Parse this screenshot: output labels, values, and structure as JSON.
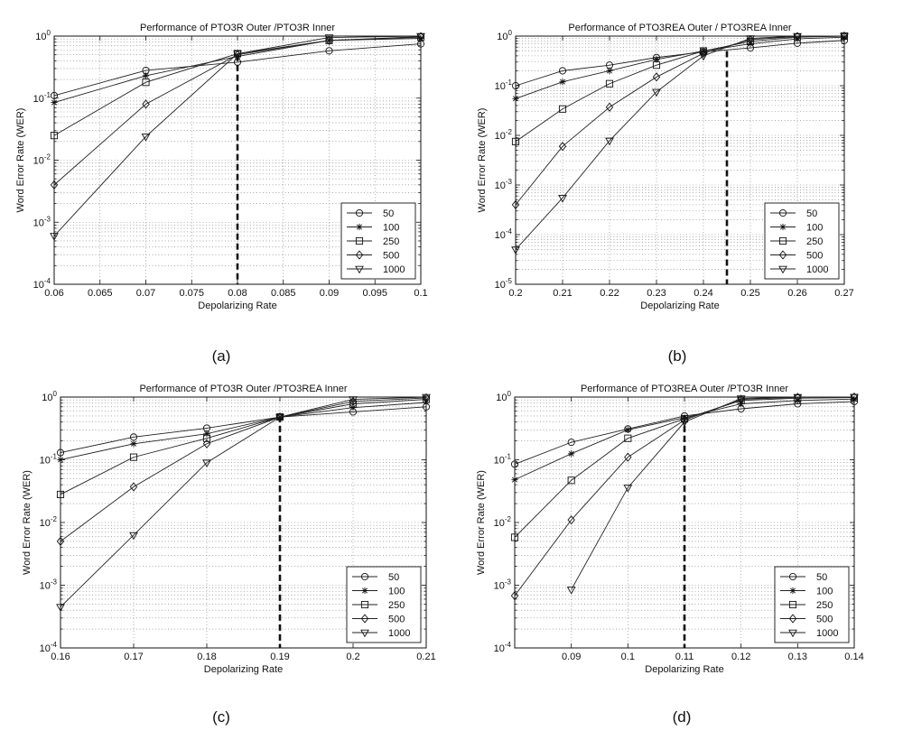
{
  "chart_data": [
    {
      "type": "line",
      "panel": "(a)",
      "title": "Performance of PTO3R Outer /PTO3R Inner",
      "xlabel": "Depolarizing Rate",
      "ylabel": "Word Error Rate (WER)",
      "xlim": [
        0.06,
        0.1
      ],
      "ylim": [
        0.0001,
        1
      ],
      "yscale": "log",
      "xticks": [
        "0.06",
        "0.065",
        "0.07",
        "0.075",
        "0.08",
        "0.085",
        "0.09",
        "0.095",
        "0.1"
      ],
      "yticks": [
        "10^-4",
        "10^-3",
        "10^-2",
        "10^-1",
        "10^0"
      ],
      "grid": true,
      "legend": "bottom-right",
      "threshold": 0.08,
      "series": [
        {
          "name": "50",
          "marker": "circle",
          "x": [
            0.06,
            0.07,
            0.08,
            0.09,
            0.1
          ],
          "values": [
            0.11,
            0.28,
            0.38,
            0.58,
            0.75
          ]
        },
        {
          "name": "100",
          "marker": "star",
          "x": [
            0.06,
            0.07,
            0.08,
            0.09,
            0.1
          ],
          "values": [
            0.085,
            0.23,
            0.47,
            0.85,
            0.92
          ]
        },
        {
          "name": "250",
          "marker": "square",
          "x": [
            0.06,
            0.07,
            0.08,
            0.09,
            0.1
          ],
          "values": [
            0.025,
            0.18,
            0.52,
            0.85,
            0.96
          ]
        },
        {
          "name": "500",
          "marker": "diamond",
          "x": [
            0.06,
            0.07,
            0.08,
            0.09,
            0.1
          ],
          "values": [
            0.004,
            0.08,
            0.5,
            0.85,
            0.98
          ]
        },
        {
          "name": "1000",
          "marker": "triangle-down",
          "x": [
            0.06,
            0.07,
            0.08,
            0.09,
            0.1
          ],
          "values": [
            0.0006,
            0.024,
            0.52,
            0.95,
            1.0
          ]
        }
      ]
    },
    {
      "type": "line",
      "panel": "(b)",
      "title": "Performance of PTO3REA Outer / PTO3REA Inner",
      "xlabel": "Depolarizing Rate",
      "ylabel": "Word Error Rate (WER)",
      "xlim": [
        0.2,
        0.27
      ],
      "ylim": [
        1e-05,
        1
      ],
      "yscale": "log",
      "xticks": [
        "0.2",
        "0.21",
        "0.22",
        "0.23",
        "0.24",
        "0.25",
        "0.26",
        "0.27"
      ],
      "yticks": [
        "10^-5",
        "10^-4",
        "10^-3",
        "10^-2",
        "10^-1",
        "10^0"
      ],
      "grid": true,
      "legend": "bottom-right",
      "threshold": 0.245,
      "series": [
        {
          "name": "50",
          "marker": "circle",
          "x": [
            0.2,
            0.21,
            0.22,
            0.23,
            0.24,
            0.25,
            0.26,
            0.27
          ],
          "values": [
            0.1,
            0.2,
            0.26,
            0.37,
            0.48,
            0.58,
            0.72,
            0.82
          ]
        },
        {
          "name": "100",
          "marker": "star",
          "x": [
            0.2,
            0.21,
            0.22,
            0.23,
            0.24,
            0.25,
            0.26,
            0.27
          ],
          "values": [
            0.055,
            0.12,
            0.2,
            0.34,
            0.5,
            0.7,
            0.88,
            0.95
          ]
        },
        {
          "name": "250",
          "marker": "square",
          "x": [
            0.2,
            0.21,
            0.22,
            0.23,
            0.24,
            0.25,
            0.26,
            0.27
          ],
          "values": [
            0.0075,
            0.034,
            0.11,
            0.26,
            0.5,
            0.78,
            0.95,
            1.0
          ]
        },
        {
          "name": "500",
          "marker": "diamond",
          "x": [
            0.2,
            0.21,
            0.22,
            0.23,
            0.24,
            0.25,
            0.26,
            0.27
          ],
          "values": [
            0.0004,
            0.006,
            0.037,
            0.15,
            0.45,
            0.85,
            0.98,
            1.0
          ]
        },
        {
          "name": "1000",
          "marker": "triangle-down",
          "x": [
            0.2,
            0.21,
            0.22,
            0.23,
            0.24,
            0.25,
            0.26,
            0.27
          ],
          "values": [
            5e-05,
            0.00055,
            0.0078,
            0.075,
            0.4,
            0.9,
            1.0,
            1.0
          ]
        }
      ]
    },
    {
      "type": "line",
      "panel": "(c)",
      "title": "Performance of PTO3R Outer /PTO3REA Inner",
      "xlabel": "Depolarizing Rate",
      "ylabel": "Word Error Rate (WER)",
      "xlim": [
        0.16,
        0.21
      ],
      "ylim": [
        0.0001,
        1
      ],
      "yscale": "log",
      "xticks": [
        "0.16",
        "0.17",
        "0.18",
        "0.19",
        "0.2",
        "0.21"
      ],
      "yticks": [
        "10^-4",
        "10^-3",
        "10^-2",
        "10^-1",
        "10^0"
      ],
      "grid": true,
      "legend": "bottom-right",
      "threshold": 0.19,
      "series": [
        {
          "name": "50",
          "marker": "circle",
          "x": [
            0.16,
            0.17,
            0.18,
            0.19,
            0.2,
            0.21
          ],
          "values": [
            0.13,
            0.23,
            0.32,
            0.48,
            0.58,
            0.7
          ]
        },
        {
          "name": "100",
          "marker": "star",
          "x": [
            0.16,
            0.17,
            0.18,
            0.19,
            0.2,
            0.21
          ],
          "values": [
            0.1,
            0.18,
            0.26,
            0.48,
            0.68,
            0.82
          ]
        },
        {
          "name": "250",
          "marker": "square",
          "x": [
            0.16,
            0.17,
            0.18,
            0.19,
            0.2,
            0.21
          ],
          "values": [
            0.028,
            0.11,
            0.22,
            0.48,
            0.78,
            0.92
          ]
        },
        {
          "name": "500",
          "marker": "diamond",
          "x": [
            0.16,
            0.17,
            0.18,
            0.19,
            0.2,
            0.21
          ],
          "values": [
            0.005,
            0.037,
            0.18,
            0.48,
            0.85,
            0.97
          ]
        },
        {
          "name": "1000",
          "marker": "triangle-down",
          "x": [
            0.16,
            0.17,
            0.18,
            0.19,
            0.2,
            0.21
          ],
          "values": [
            0.00045,
            0.0063,
            0.09,
            0.48,
            0.92,
            1.0
          ]
        }
      ]
    },
    {
      "type": "line",
      "panel": "(d)",
      "title": "Performance of PTO3REA Outer /PTO3R Inner",
      "xlabel": "Depolarizing Rate",
      "ylabel": "Word Error Rate (WER)",
      "xlim": [
        0.08,
        0.14
      ],
      "ylim": [
        0.0001,
        1
      ],
      "yscale": "log",
      "xticks": [
        "0.09",
        "0.1",
        "0.11",
        "0.12",
        "0.13",
        "0.14"
      ],
      "yticks": [
        "10^-4",
        "10^-3",
        "10^-2",
        "10^-1",
        "10^0"
      ],
      "grid": true,
      "legend": "bottom-right",
      "threshold": 0.11,
      "series": [
        {
          "name": "50",
          "marker": "circle",
          "x": [
            0.08,
            0.09,
            0.1,
            0.11,
            0.12,
            0.13,
            0.14
          ],
          "values": [
            0.085,
            0.19,
            0.31,
            0.5,
            0.65,
            0.78,
            0.85
          ]
        },
        {
          "name": "100",
          "marker": "star",
          "x": [
            0.08,
            0.09,
            0.1,
            0.11,
            0.12,
            0.13,
            0.14
          ],
          "values": [
            0.048,
            0.125,
            0.3,
            0.47,
            0.78,
            0.88,
            0.93
          ]
        },
        {
          "name": "250",
          "marker": "square",
          "x": [
            0.08,
            0.09,
            0.1,
            0.11,
            0.12,
            0.13,
            0.14
          ],
          "values": [
            0.0058,
            0.047,
            0.22,
            0.45,
            0.88,
            0.96,
            0.98
          ]
        },
        {
          "name": "500",
          "marker": "diamond",
          "x": [
            0.08,
            0.09,
            0.1,
            0.11,
            0.12,
            0.13,
            0.14
          ],
          "values": [
            0.00068,
            0.011,
            0.11,
            0.43,
            0.92,
            0.99,
            1.0
          ]
        },
        {
          "name": "1000",
          "marker": "triangle-down",
          "x": [
            0.09,
            0.1,
            0.11,
            0.12,
            0.13,
            0.14
          ],
          "values": [
            0.00085,
            0.036,
            0.4,
            0.95,
            1.0,
            1.0
          ]
        }
      ]
    }
  ]
}
